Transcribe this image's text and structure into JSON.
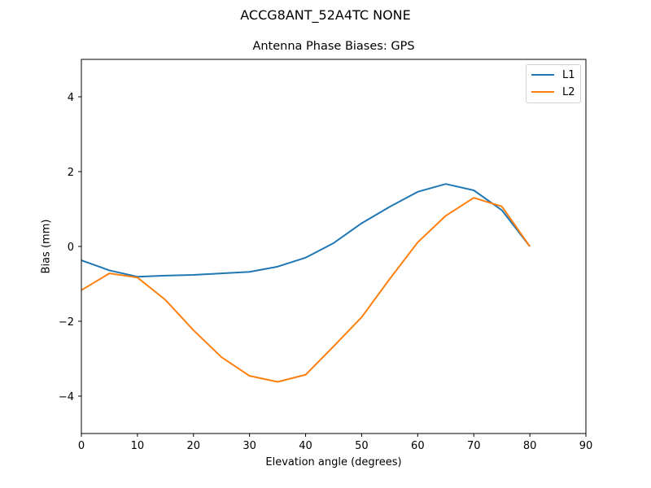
{
  "figure": {
    "suptitle": "ACCG8ANT_52A4TC NONE",
    "title": "Antenna Phase Biases: GPS",
    "xlabel": "Elevation angle (degrees)",
    "ylabel": "Bias (mm)"
  },
  "legend": {
    "items": [
      {
        "label": "L1",
        "color": "#1f77b4"
      },
      {
        "label": "L2",
        "color": "#ff7f0e"
      }
    ]
  },
  "chart_data": {
    "type": "line",
    "title": "Antenna Phase Biases: GPS",
    "suptitle": "ACCG8ANT_52A4TC NONE",
    "xlabel": "Elevation angle (degrees)",
    "ylabel": "Bias (mm)",
    "xlim": [
      0,
      90
    ],
    "ylim": [
      -5,
      5
    ],
    "xticks": [
      0,
      10,
      20,
      30,
      40,
      50,
      60,
      70,
      80,
      90
    ],
    "yticks": [
      -4,
      -2,
      0,
      2,
      4
    ],
    "ytick_labels": [
      "−4",
      "−2",
      "0",
      "2",
      "4"
    ],
    "grid": false,
    "legend_position": "upper right",
    "x": [
      0,
      5,
      10,
      15,
      20,
      25,
      30,
      35,
      40,
      45,
      50,
      55,
      60,
      65,
      70,
      75,
      80
    ],
    "series": [
      {
        "name": "L1",
        "color": "#1f77b4",
        "values": [
          -0.37,
          -0.64,
          -0.81,
          -0.78,
          -0.76,
          -0.72,
          -0.68,
          -0.54,
          -0.3,
          0.09,
          0.62,
          1.06,
          1.46,
          1.67,
          1.5,
          0.97,
          0.0
        ]
      },
      {
        "name": "L2",
        "color": "#ff7f0e",
        "values": [
          -1.17,
          -0.72,
          -0.83,
          -1.43,
          -2.24,
          -2.96,
          -3.46,
          -3.62,
          -3.43,
          -2.67,
          -1.89,
          -0.87,
          0.11,
          0.82,
          1.3,
          1.07,
          0.0
        ]
      }
    ]
  }
}
